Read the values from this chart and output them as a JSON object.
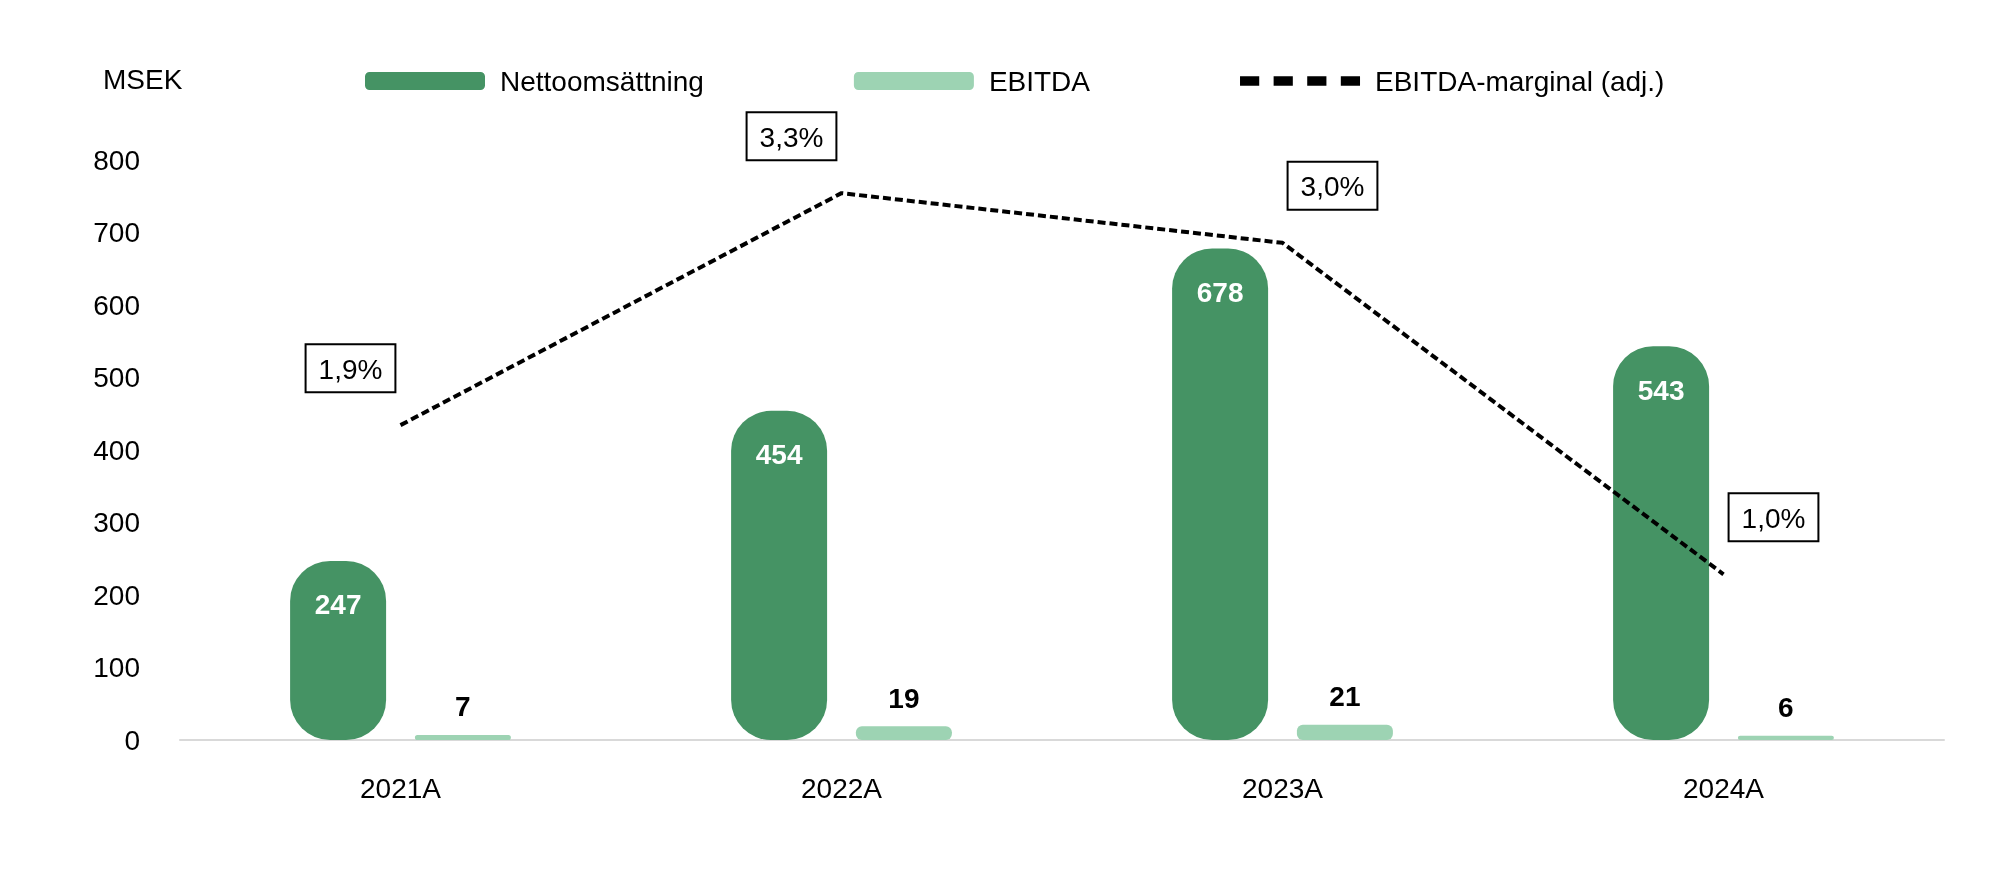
{
  "chart_data": {
    "type": "bar",
    "ylabel": "MSEK",
    "categories": [
      "2021A",
      "2022A",
      "2023A",
      "2024A"
    ],
    "series": [
      {
        "name": "Nettoomsättning",
        "color": "#459364",
        "values": [
          247,
          454,
          678,
          543
        ]
      },
      {
        "name": "EBITDA",
        "color": "#9dd3b3",
        "values": [
          7,
          19,
          21,
          6
        ]
      },
      {
        "name": "EBITDA-marginal (adj.)",
        "type": "line",
        "axis": "y2",
        "color": "#000000",
        "line_style": "dashed",
        "marker": "none",
        "values": [
          1.9,
          3.3,
          3.0,
          1.0
        ],
        "value_labels": [
          "1,9%",
          "3,3%",
          "3,0%",
          "1,0%"
        ]
      }
    ],
    "ylim": [
      0,
      800
    ],
    "yticks": [
      0,
      100,
      200,
      300,
      400,
      500,
      600,
      700,
      800
    ],
    "data_labels": true,
    "grid": false,
    "legend": "top"
  }
}
